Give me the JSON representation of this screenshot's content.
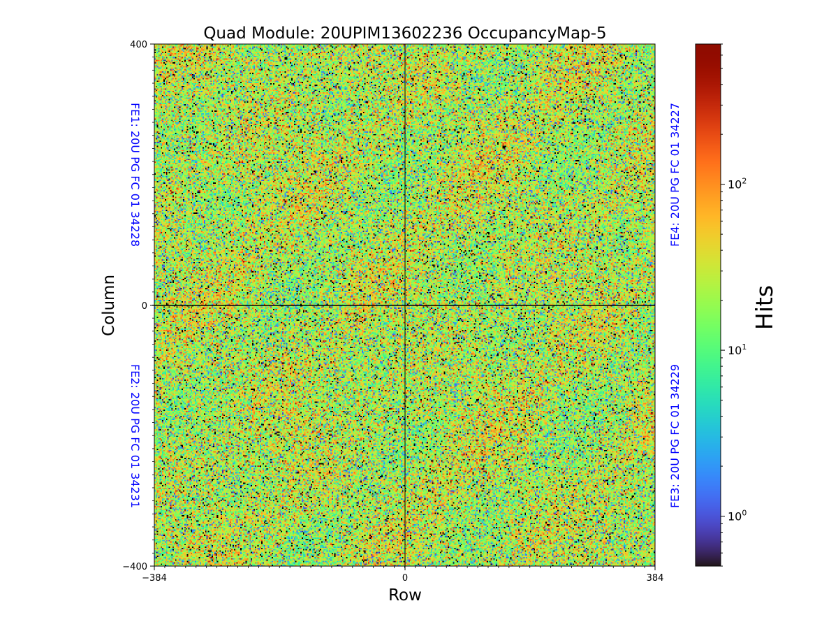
{
  "chart_data": {
    "type": "heatmap",
    "title": "Quad Module: 20UPIM13602236 OccupancyMap-5",
    "xlabel": "Row",
    "ylabel": "Column",
    "xlim": [
      -384,
      384
    ],
    "ylim": [
      -400,
      400
    ],
    "x_ticks": [
      "−384",
      "0",
      "384"
    ],
    "y_ticks": [
      "400",
      "0",
      "−400"
    ],
    "colorbar": {
      "label": "Hits",
      "scale": "log",
      "range": [
        0.5,
        700
      ],
      "colormap": "turbo",
      "ticks": [
        {
          "value": 1,
          "base": "10",
          "exp": "0"
        },
        {
          "value": 10,
          "base": "10",
          "exp": "1"
        },
        {
          "value": 100,
          "base": "10",
          "exp": "2"
        }
      ]
    },
    "front_ends": [
      {
        "id": "FE1",
        "label": "FE1: 20U PG FC 01 34228",
        "quadrant": "top-left"
      },
      {
        "id": "FE2",
        "label": "FE2: 20U PG FC 01 34231",
        "quadrant": "bottom-left"
      },
      {
        "id": "FE3",
        "label": "FE3: 20U PG FC 01 34229",
        "quadrant": "bottom-right"
      },
      {
        "id": "FE4",
        "label": "FE4: 20U PG FC 01 34227",
        "quadrant": "top-right"
      }
    ],
    "typical_hits": 25,
    "grid": false
  }
}
